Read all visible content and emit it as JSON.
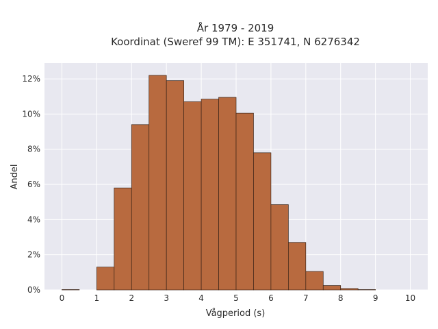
{
  "chart_data": {
    "type": "bar",
    "title_line1": "År 1979 - 2019",
    "title_line2": "Koordinat (Sweref 99 TM): E 351741, N 6276342",
    "xlabel": "Vågperiod (s)",
    "ylabel": "Andel",
    "bin_width": 0.5,
    "bin_starts": [
      0,
      0.5,
      1,
      1.5,
      2,
      2.5,
      3,
      3.5,
      4,
      4.5,
      5,
      5.5,
      6,
      6.5,
      7,
      7.5,
      8,
      8.5,
      9,
      9.5
    ],
    "values": [
      0.02,
      0,
      1.3,
      5.8,
      9.4,
      12.2,
      11.9,
      10.7,
      10.85,
      10.95,
      10.05,
      7.8,
      4.85,
      2.7,
      1.05,
      0.25,
      0.08,
      0.02,
      0,
      0
    ],
    "value_unit": "%",
    "xlim": [
      -0.5,
      10.5
    ],
    "ylim": [
      0,
      12.9
    ],
    "x_ticks": [
      "0",
      "1",
      "2",
      "3",
      "4",
      "5",
      "6",
      "7",
      "8",
      "9",
      "10"
    ],
    "y_ticks": [
      "0%",
      "2%",
      "4%",
      "6%",
      "8%",
      "10%",
      "12%"
    ],
    "grid": true,
    "bar_color": "#b86a3f",
    "bar_edge_color": "#3a2418",
    "plot_background": "#e8e8f0"
  }
}
